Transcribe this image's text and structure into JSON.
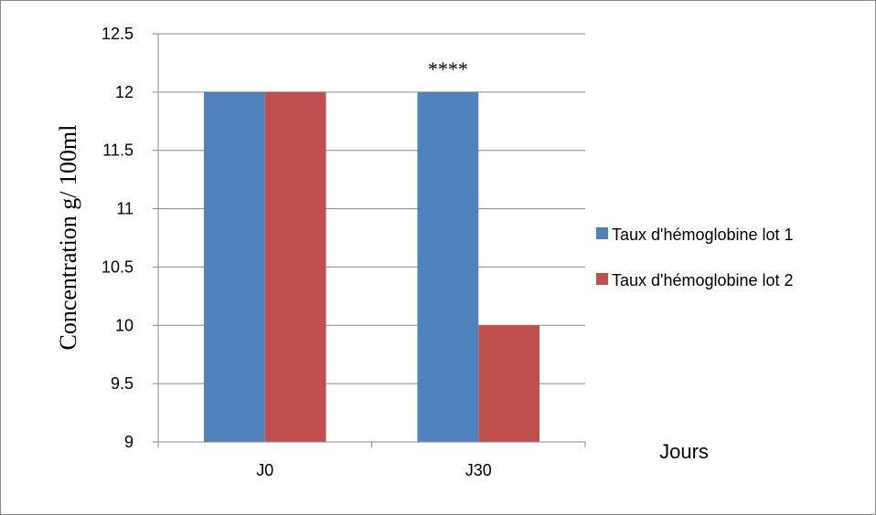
{
  "chart_data": {
    "type": "bar",
    "categories": [
      "J0",
      "J30"
    ],
    "series": [
      {
        "name": "Taux d'hémoglobine lot 1",
        "values": [
          12,
          12
        ],
        "color": "#4F81BD"
      },
      {
        "name": "Taux d'hémoglobine lot 2",
        "values": [
          12,
          10
        ],
        "color": "#C0504D"
      }
    ],
    "xlabel": "Jours",
    "ylabel": "Concentration g/ 100ml",
    "ylim": [
      9,
      12.5
    ],
    "yticks": [
      "9",
      "9.5",
      "10",
      "10.5",
      "11",
      "11.5",
      "12",
      "12.5"
    ],
    "grid": true,
    "legend_position": "right",
    "annotations": [
      {
        "category": "J30",
        "text": "****"
      }
    ]
  }
}
